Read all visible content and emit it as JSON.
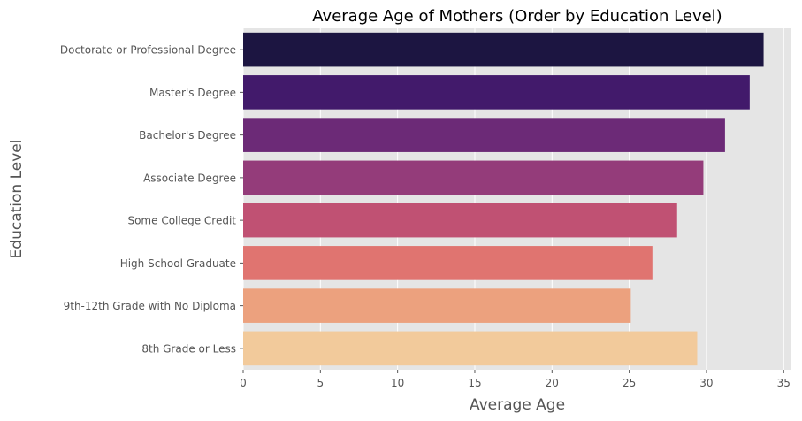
{
  "chart_data": {
    "type": "bar",
    "orientation": "horizontal",
    "title": "Average Age of Mothers (Order by Education Level)",
    "xlabel": "Average Age",
    "ylabel": "Education Level",
    "xlim": [
      0,
      35.5
    ],
    "xticks": [
      "0",
      "5",
      "10",
      "15",
      "20",
      "25",
      "30",
      "35"
    ],
    "categories": [
      "Doctorate or Professional Degree",
      "Master's Degree",
      "Bachelor's Degree",
      "Associate Degree",
      "Some College Credit",
      "High School Graduate",
      "9th-12th Grade with No Diploma",
      "8th Grade or Less"
    ],
    "values": [
      33.7,
      32.8,
      31.2,
      29.8,
      28.1,
      26.5,
      25.1,
      29.4
    ],
    "colors": [
      "#1c1541",
      "#421a6b",
      "#6c2a77",
      "#943c7a",
      "#c05173",
      "#e07470",
      "#eca17e",
      "#f2ca9b"
    ],
    "grid": true,
    "background": "#e5e5e5",
    "grid_color": "#ffffff"
  }
}
